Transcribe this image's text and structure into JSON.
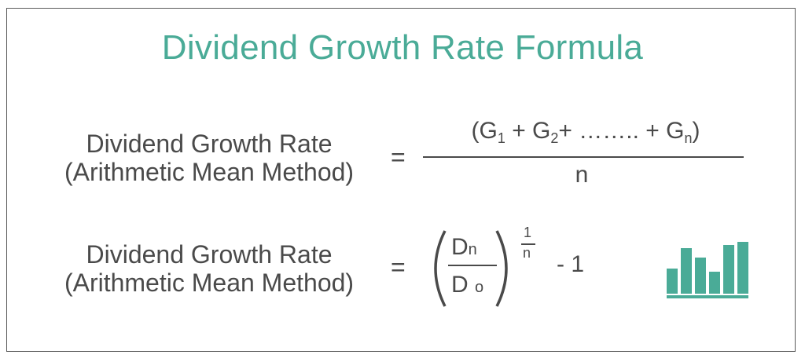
{
  "title": "Dividend Growth Rate Formula",
  "formula1": {
    "label_line1": "Dividend Growth Rate",
    "label_line2": "(Arithmetic Mean Method)",
    "equals": "=",
    "numerator_open": "(G",
    "sub1": "1",
    "plus1": " + G",
    "sub2": "2",
    "middle": "+ …….. + G",
    "subn": "n",
    "numerator_close": ")",
    "denominator": "n"
  },
  "formula2": {
    "label_line1": "Dividend Growth Rate",
    "label_line2": "(Arithmetic Mean Method)",
    "equals": "=",
    "numerator_base": "D",
    "numerator_sub": "n",
    "denominator_base": "D",
    "denominator_sub": "o",
    "exponent_numerator": "1",
    "exponent_denominator": "n",
    "tail": "- 1"
  },
  "logo": {
    "icon": "bar-chart-icon",
    "color": "#4aab97"
  }
}
